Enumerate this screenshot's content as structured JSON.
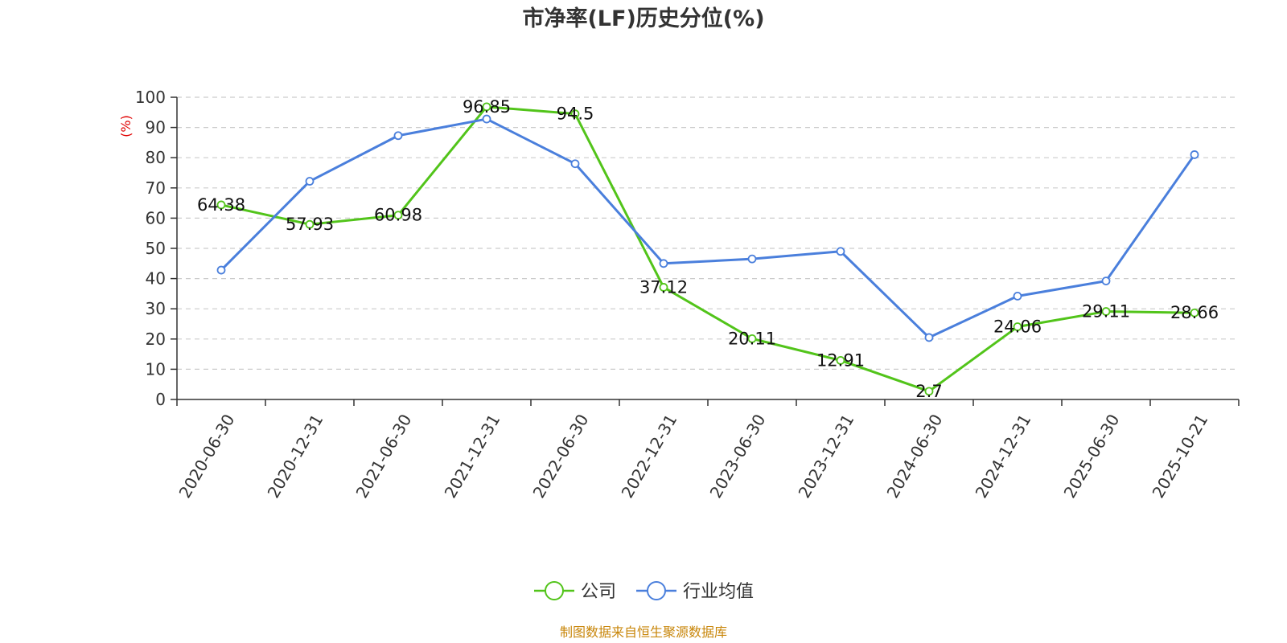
{
  "chart_data": {
    "type": "line",
    "title": "市净率(LF)历史分位(%)",
    "ylabel": "(%)",
    "ylim": [
      0,
      100
    ],
    "yticks": [
      0,
      10,
      20,
      30,
      40,
      50,
      60,
      70,
      80,
      90,
      100
    ],
    "grid": true,
    "legend_position": "bottom",
    "categories": [
      "2020-06-30",
      "2020-12-31",
      "2021-06-30",
      "2021-12-31",
      "2022-06-30",
      "2022-12-31",
      "2023-06-30",
      "2023-12-31",
      "2024-06-30",
      "2024-12-31",
      "2025-06-30",
      "2025-10-21"
    ],
    "series": [
      {
        "name": "公司",
        "color": "#52c41a",
        "values": [
          64.38,
          57.93,
          60.98,
          96.85,
          94.5,
          37.12,
          20.11,
          12.91,
          2.7,
          24.06,
          29.11,
          28.66
        ],
        "labels": [
          "64.38",
          "57.93",
          "60.98",
          "96.85",
          "94.5",
          "37.12",
          "20.11",
          "12.91",
          "2.7",
          "24.06",
          "29.11",
          "28.66"
        ],
        "show_labels": true
      },
      {
        "name": "行业均值",
        "color": "#4a7fdc",
        "values": [
          42.8,
          72.2,
          87.3,
          92.8,
          78.0,
          45.0,
          46.5,
          49.0,
          20.5,
          34.2,
          39.2,
          81.0
        ],
        "show_labels": false
      }
    ],
    "source": "制图数据来自恒生聚源数据库"
  }
}
